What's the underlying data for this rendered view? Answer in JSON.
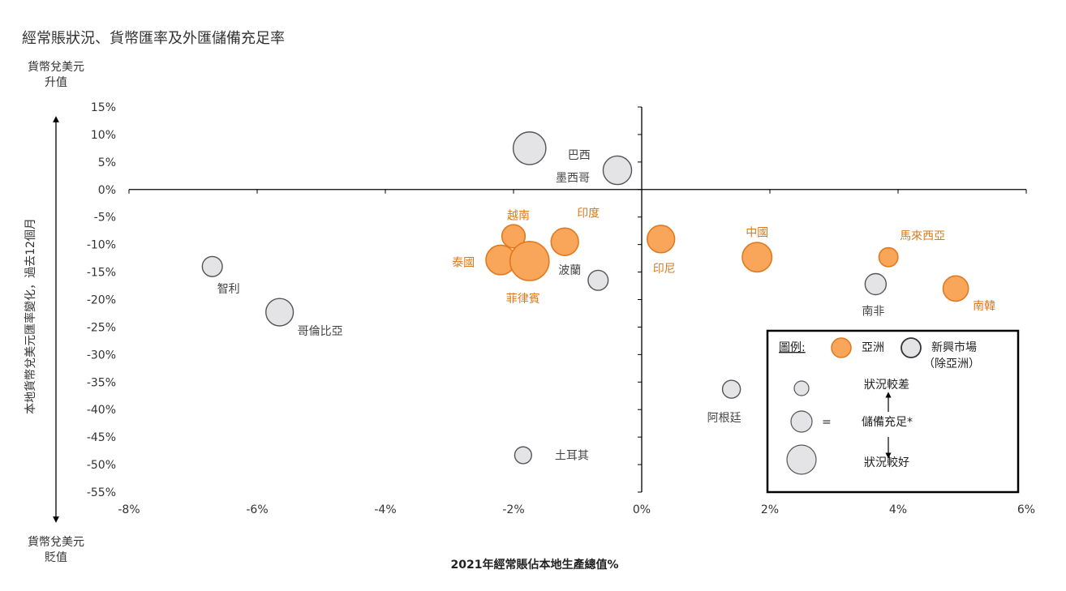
{
  "chart_data": {
    "type": "scatter",
    "title": "經常賬狀況、貨幣匯率及外匯儲備充足率",
    "xlabel": "2021年經常賬佔本地生產總值%",
    "ylabel": "本地貨幣兌美元匯率變化，過去12個月",
    "y_top_note": [
      "貨幣兌美元",
      "升值"
    ],
    "y_bottom_note": [
      "貨幣兌美元",
      "貶值"
    ],
    "xlim": [
      -8,
      6
    ],
    "ylim": [
      -55,
      15
    ],
    "x_ticks": [
      "-8%",
      "-6%",
      "-4%",
      "-2%",
      "0%",
      "2%",
      "4%",
      "6%"
    ],
    "y_ticks": [
      "15%",
      "10%",
      "5%",
      "0%",
      "-5%",
      "-10%",
      "-15%",
      "-20%",
      "-25%",
      "-30%",
      "-35%",
      "-40%",
      "-45%",
      "-50%",
      "-55%"
    ],
    "colors": {
      "asia_fill": "#F9A55A",
      "asia_stroke": "#E07A1F",
      "asia_text": "#D97A1E",
      "em_fill": "#E4E4E6",
      "em_stroke": "#555555",
      "em_text": "#444444"
    },
    "series": [
      {
        "name": "亞洲",
        "points": [
          {
            "label": "越南",
            "x": -2.0,
            "y": -8.5,
            "size": 1.1
          },
          {
            "label": "印度",
            "x": -1.2,
            "y": -9.5,
            "size": 1.3
          },
          {
            "label": "泰國",
            "x": -2.2,
            "y": -12.8,
            "size": 1.4
          },
          {
            "label": "菲律賓",
            "x": -1.75,
            "y": -13.0,
            "size": 1.85
          },
          {
            "label": "印尼",
            "x": 0.3,
            "y": -9.0,
            "size": 1.3
          },
          {
            "label": "中國",
            "x": 1.8,
            "y": -12.3,
            "size": 1.4
          },
          {
            "label": "馬來西亞",
            "x": 3.85,
            "y": -12.3,
            "size": 0.9
          },
          {
            "label": "南韓",
            "x": 4.9,
            "y": -18.0,
            "size": 1.2
          }
        ]
      },
      {
        "name": "新興市場",
        "points": [
          {
            "label": "巴西",
            "x": -1.75,
            "y": 7.5,
            "size": 1.55
          },
          {
            "label": "墨西哥",
            "x": -0.38,
            "y": 3.5,
            "size": 1.35
          },
          {
            "label": "智利",
            "x": -6.7,
            "y": -14.0,
            "size": 0.95
          },
          {
            "label": "哥倫比亞",
            "x": -5.65,
            "y": -22.3,
            "size": 1.3
          },
          {
            "label": "波蘭",
            "x": -0.68,
            "y": -16.5,
            "size": 0.95
          },
          {
            "label": "南非",
            "x": 3.65,
            "y": -17.2,
            "size": 1.0
          },
          {
            "label": "阿根廷",
            "x": 1.4,
            "y": -36.3,
            "size": 0.85
          },
          {
            "label": "土耳其",
            "x": -1.85,
            "y": -48.3,
            "size": 0.8
          }
        ]
      }
    ],
    "legend": {
      "title": "圖例:",
      "asia": "亞洲",
      "em_line1": "新興市場",
      "em_line2": "（除亞洲）",
      "worse": "狀況較差",
      "equals": "=",
      "reserve": "儲備充足*",
      "better": "狀況較好"
    }
  }
}
